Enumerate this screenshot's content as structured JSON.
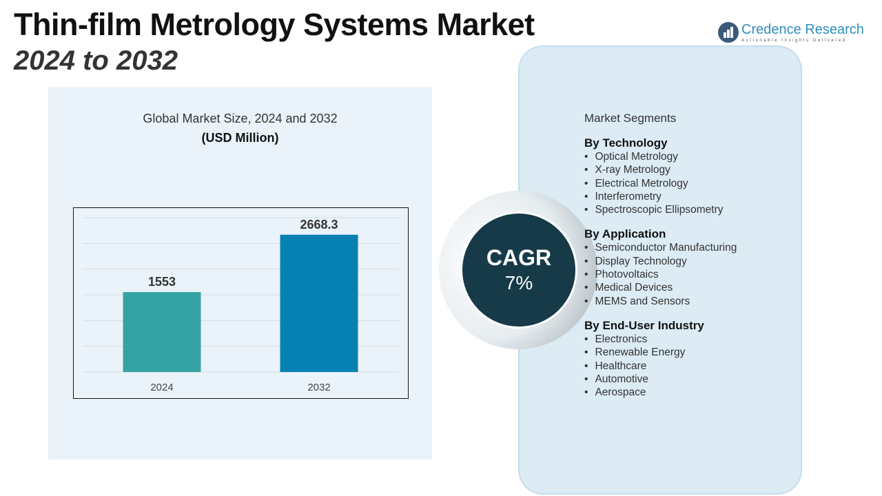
{
  "header": {
    "title": "Thin-film Metrology Systems Market",
    "subtitle": "2024 to 2032"
  },
  "logo": {
    "name": "Credence Research",
    "tagline": "Actionable Insights Delivered"
  },
  "chart_data": {
    "type": "bar",
    "title": "Global Market Size, 2024 and 2032",
    "unit_label": "(USD Million)",
    "categories": [
      "2024",
      "2032"
    ],
    "values": [
      1553,
      2668.3
    ],
    "value_labels": [
      "1553",
      "2668.3"
    ],
    "colors": [
      "#35a2a3",
      "#0781b2"
    ],
    "ylim": [
      0,
      3000
    ],
    "grid": true,
    "xlabel": "",
    "ylabel": ""
  },
  "cagr": {
    "label": "CAGR",
    "value": "7%"
  },
  "segments": {
    "heading": "Market Segments",
    "groups": [
      {
        "title": "By Technology",
        "items": [
          "Optical Metrology",
          "X-ray Metrology",
          "Electrical Metrology",
          "Interferometry",
          "Spectroscopic Ellipsometry"
        ]
      },
      {
        "title": "By Application",
        "items": [
          "Semiconductor Manufacturing",
          "Display Technology",
          "Photovoltaics",
          "Medical Devices",
          "MEMS and Sensors"
        ]
      },
      {
        "title": "By End-User Industry",
        "items": [
          "Electronics",
          "Renewable Energy",
          "Healthcare",
          "Automotive",
          "Aerospace"
        ]
      }
    ]
  }
}
